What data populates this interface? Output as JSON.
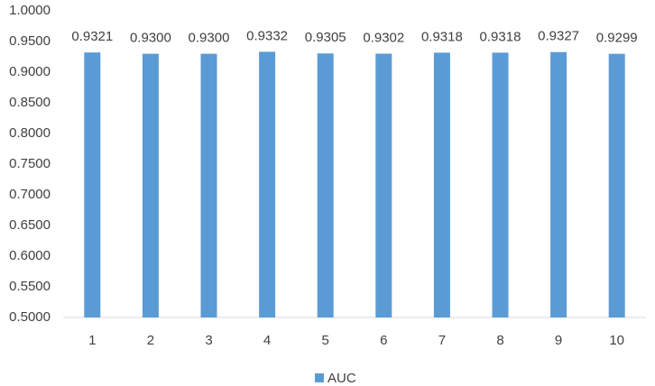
{
  "chart_data": {
    "type": "bar",
    "categories": [
      "1",
      "2",
      "3",
      "4",
      "5",
      "6",
      "7",
      "8",
      "9",
      "10"
    ],
    "series": [
      {
        "name": "AUC",
        "color": "#5b9bd5",
        "values": [
          0.9321,
          0.93,
          0.93,
          0.9332,
          0.9305,
          0.9302,
          0.9318,
          0.9318,
          0.9327,
          0.9299
        ],
        "value_labels": [
          "0.9321",
          "0.9300",
          "0.9300",
          "0.9332",
          "0.9305",
          "0.9302",
          "0.9318",
          "0.9318",
          "0.9327",
          "0.9299"
        ]
      }
    ],
    "ylim": [
      0.5,
      1.0
    ],
    "yticks": [
      {
        "value": 0.5,
        "label": "0.5000"
      },
      {
        "value": 0.55,
        "label": "0.5500"
      },
      {
        "value": 0.6,
        "label": "0.6000"
      },
      {
        "value": 0.65,
        "label": "0.6500"
      },
      {
        "value": 0.7,
        "label": "0.7000"
      },
      {
        "value": 0.75,
        "label": "0.7500"
      },
      {
        "value": 0.8,
        "label": "0.8000"
      },
      {
        "value": 0.85,
        "label": "0.8500"
      },
      {
        "value": 0.9,
        "label": "0.9000"
      },
      {
        "value": 0.95,
        "label": "0.9500"
      },
      {
        "value": 1.0,
        "label": "1.0000"
      }
    ],
    "grid": false,
    "legend": "bottom"
  }
}
